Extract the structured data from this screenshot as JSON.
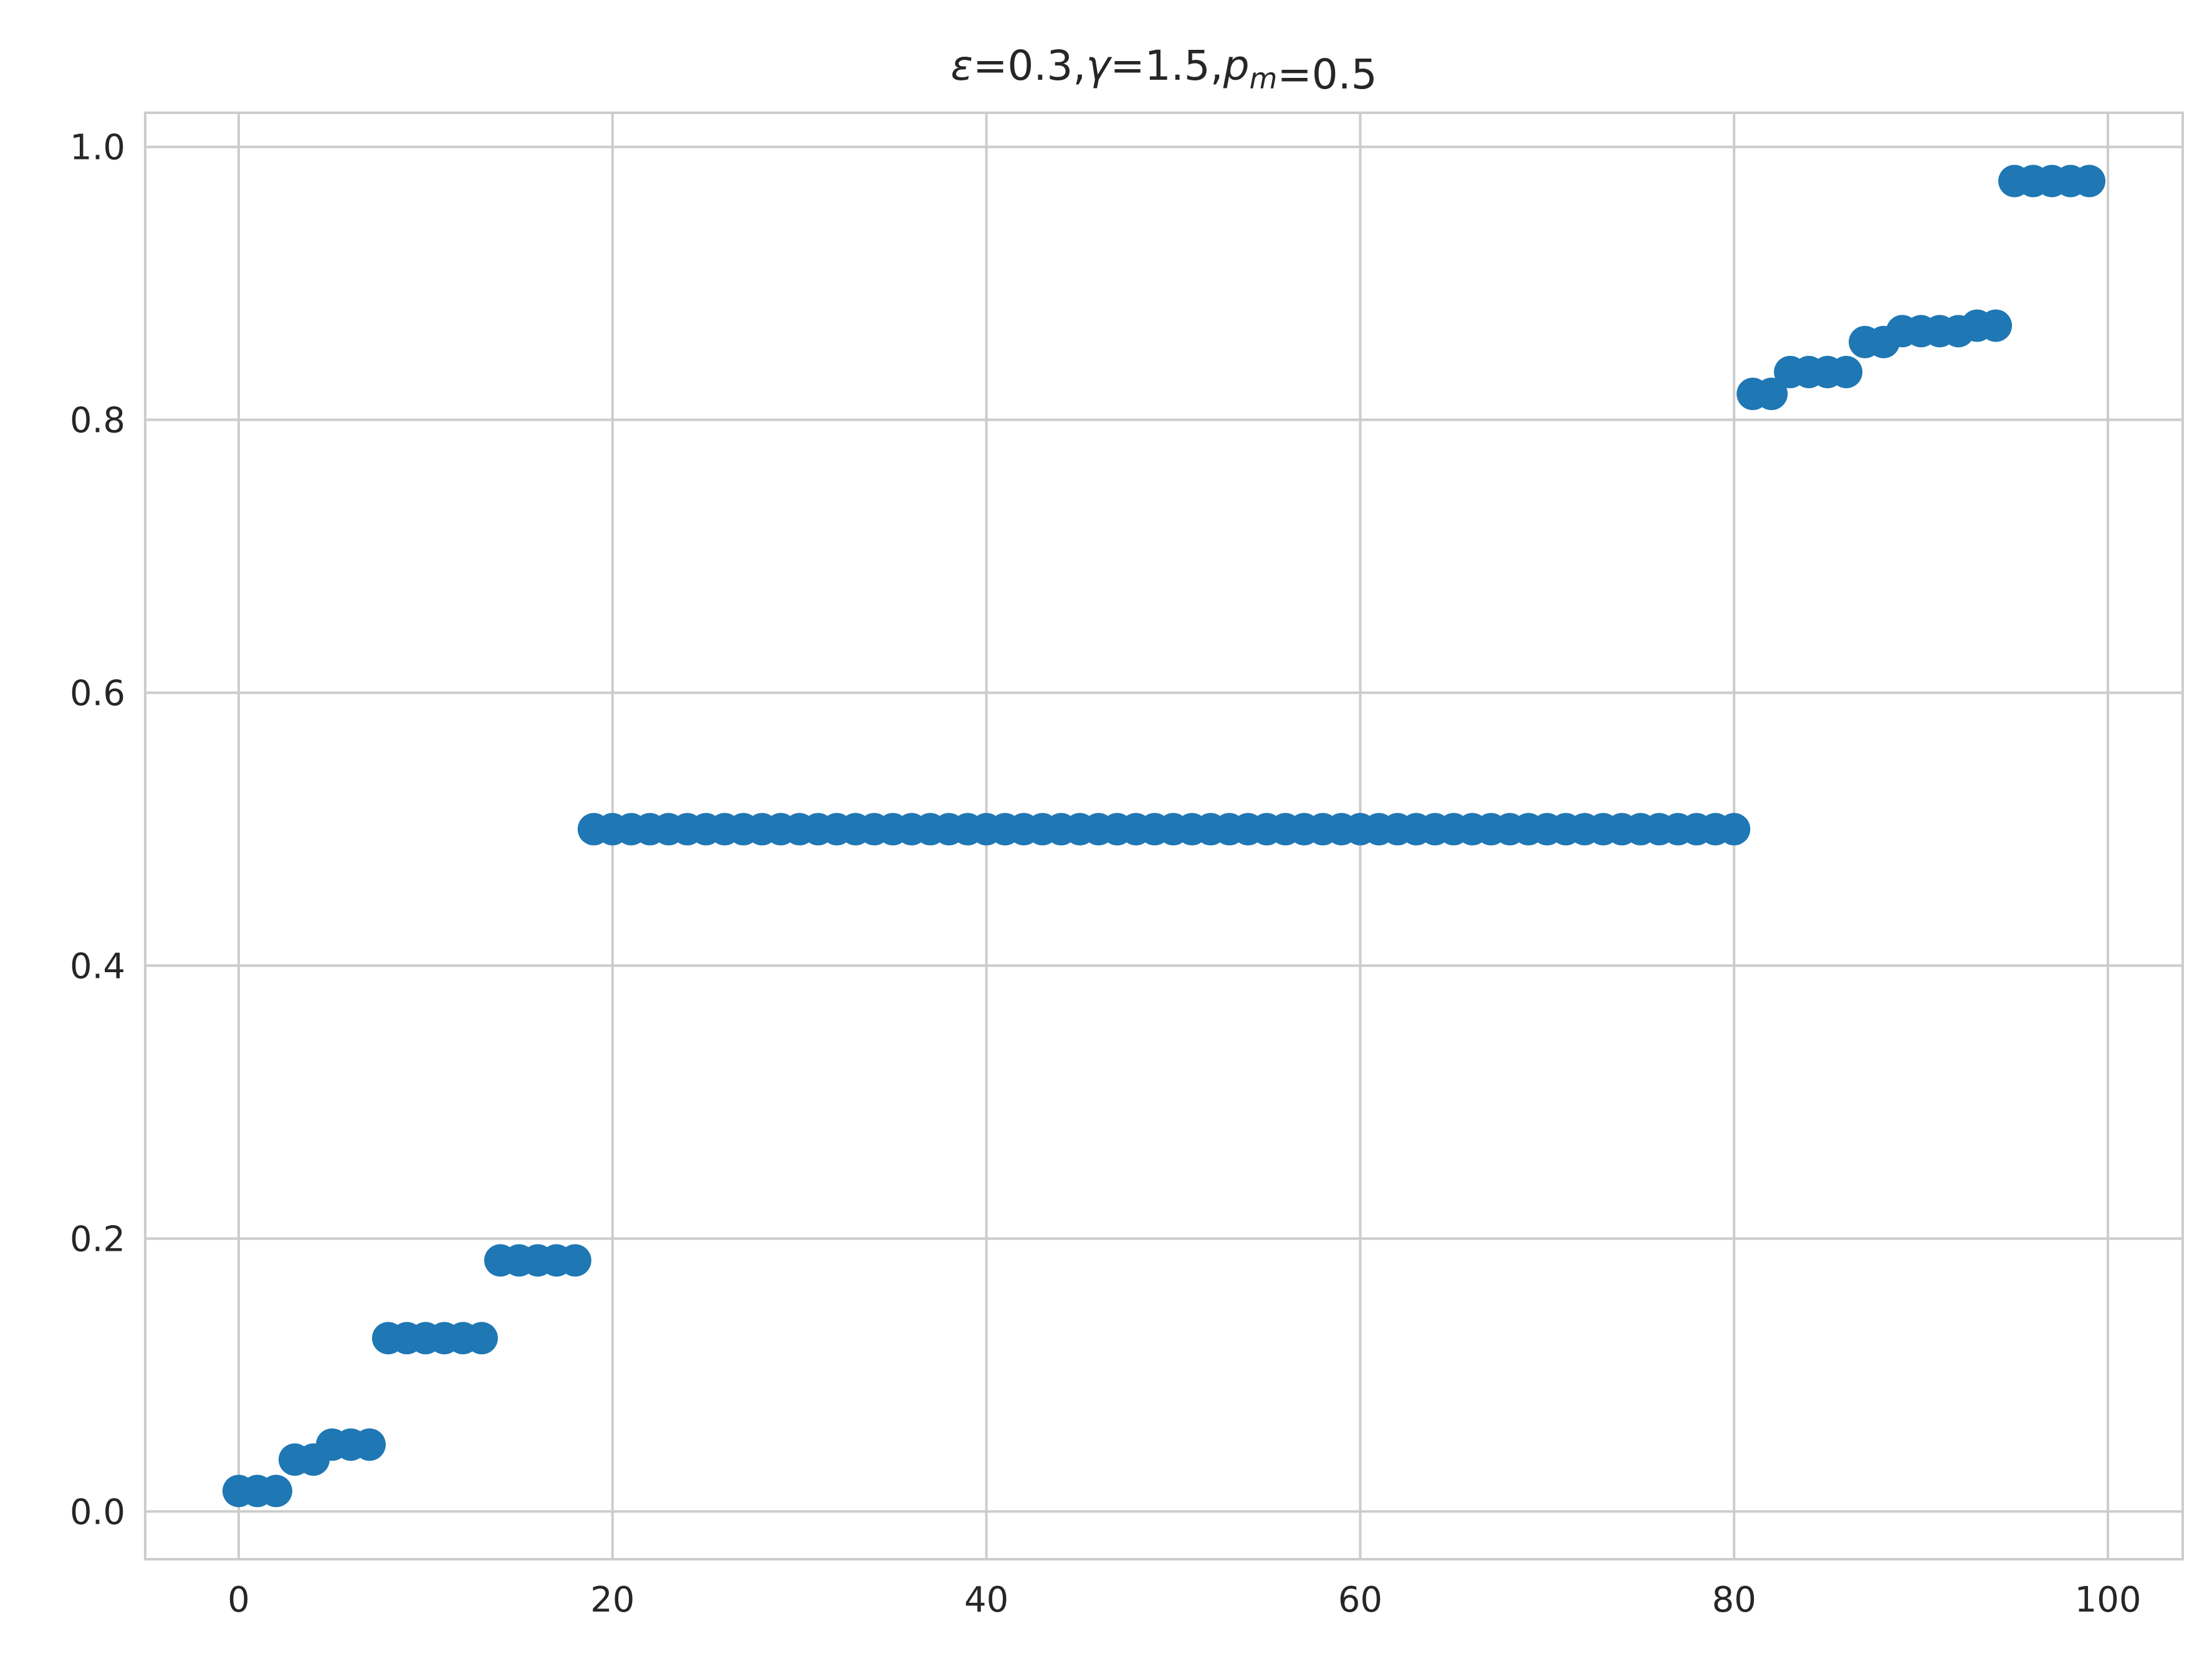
{
  "chart_data": {
    "type": "scatter",
    "title_parts": [
      {
        "text": "ε",
        "italic": true,
        "sub": false
      },
      {
        "text": "=0.3,",
        "italic": false,
        "sub": false
      },
      {
        "text": "γ",
        "italic": true,
        "sub": false
      },
      {
        "text": "=1.5,",
        "italic": false,
        "sub": false
      },
      {
        "text": "p",
        "italic": true,
        "sub": false
      },
      {
        "text": "m",
        "italic": true,
        "sub": true
      },
      {
        "text": "=0.5",
        "italic": false,
        "sub": false
      }
    ],
    "xlabel": "",
    "ylabel": "",
    "xlim": [
      -5,
      104
    ],
    "ylim": [
      -0.035,
      1.025
    ],
    "x_ticks": [
      0,
      20,
      40,
      60,
      80,
      100
    ],
    "x_tick_labels": [
      "0",
      "20",
      "40",
      "60",
      "80",
      "100"
    ],
    "y_ticks": [
      0.0,
      0.2,
      0.4,
      0.6,
      0.8,
      1.0
    ],
    "y_tick_labels": [
      "0.0",
      "0.2",
      "0.4",
      "0.6",
      "0.8",
      "1.0"
    ],
    "grid": true,
    "marker_color": "#1f77b4",
    "x": [
      0,
      1,
      2,
      3,
      4,
      5,
      6,
      7,
      8,
      9,
      10,
      11,
      12,
      13,
      14,
      15,
      16,
      17,
      18,
      19,
      20,
      21,
      22,
      23,
      24,
      25,
      26,
      27,
      28,
      29,
      30,
      31,
      32,
      33,
      34,
      35,
      36,
      37,
      38,
      39,
      40,
      41,
      42,
      43,
      44,
      45,
      46,
      47,
      48,
      49,
      50,
      51,
      52,
      53,
      54,
      55,
      56,
      57,
      58,
      59,
      60,
      61,
      62,
      63,
      64,
      65,
      66,
      67,
      68,
      69,
      70,
      71,
      72,
      73,
      74,
      75,
      76,
      77,
      78,
      79,
      80,
      81,
      82,
      83,
      84,
      85,
      86,
      87,
      88,
      89,
      90,
      91,
      92,
      93,
      94,
      95,
      96,
      97,
      98,
      99
    ],
    "y": [
      0.015,
      0.015,
      0.015,
      0.038,
      0.038,
      0.049,
      0.049,
      0.049,
      0.127,
      0.127,
      0.127,
      0.127,
      0.127,
      0.127,
      0.184,
      0.184,
      0.184,
      0.184,
      0.184,
      0.5,
      0.5,
      0.5,
      0.5,
      0.5,
      0.5,
      0.5,
      0.5,
      0.5,
      0.5,
      0.5,
      0.5,
      0.5,
      0.5,
      0.5,
      0.5,
      0.5,
      0.5,
      0.5,
      0.5,
      0.5,
      0.5,
      0.5,
      0.5,
      0.5,
      0.5,
      0.5,
      0.5,
      0.5,
      0.5,
      0.5,
      0.5,
      0.5,
      0.5,
      0.5,
      0.5,
      0.5,
      0.5,
      0.5,
      0.5,
      0.5,
      0.5,
      0.5,
      0.5,
      0.5,
      0.5,
      0.5,
      0.5,
      0.5,
      0.5,
      0.5,
      0.5,
      0.5,
      0.5,
      0.5,
      0.5,
      0.5,
      0.5,
      0.5,
      0.5,
      0.5,
      0.5,
      0.819,
      0.819,
      0.835,
      0.835,
      0.835,
      0.835,
      0.857,
      0.857,
      0.865,
      0.865,
      0.865,
      0.865,
      0.869,
      0.869,
      0.975,
      0.975,
      0.975,
      0.975,
      0.975
    ]
  }
}
